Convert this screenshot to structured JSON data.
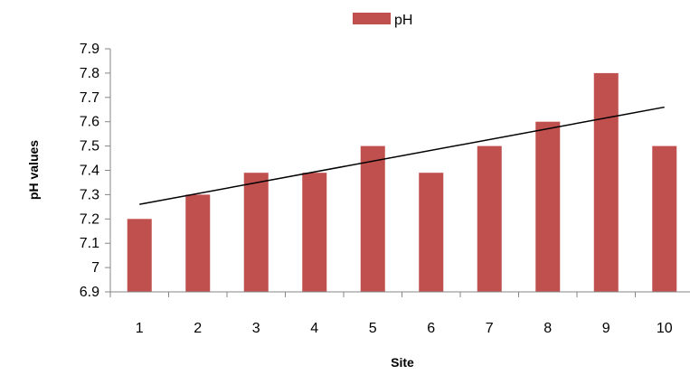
{
  "chart_data": {
    "type": "bar",
    "categories": [
      "1",
      "2",
      "3",
      "4",
      "5",
      "6",
      "7",
      "8",
      "9",
      "10"
    ],
    "series": [
      {
        "name": "pH",
        "values": [
          7.2,
          7.3,
          7.39,
          7.39,
          7.5,
          7.39,
          7.5,
          7.6,
          7.8,
          7.5
        ]
      }
    ],
    "y_ticks": [
      "6.9",
      "7",
      "7.1",
      "7.2",
      "7.3",
      "7.4",
      "7.5",
      "7.6",
      "7.7",
      "7.8",
      "7.9"
    ],
    "ylim": [
      6.9,
      7.9
    ],
    "xlabel": "Site",
    "ylabel": "pH values",
    "trendline": {
      "type": "linear",
      "start_value": 7.26,
      "end_value": 7.66
    },
    "legend": {
      "placement": "top-center"
    },
    "grid": false,
    "colors": {
      "bar": "#c0504d",
      "axis": "#868686",
      "trendline": "#000000"
    }
  }
}
